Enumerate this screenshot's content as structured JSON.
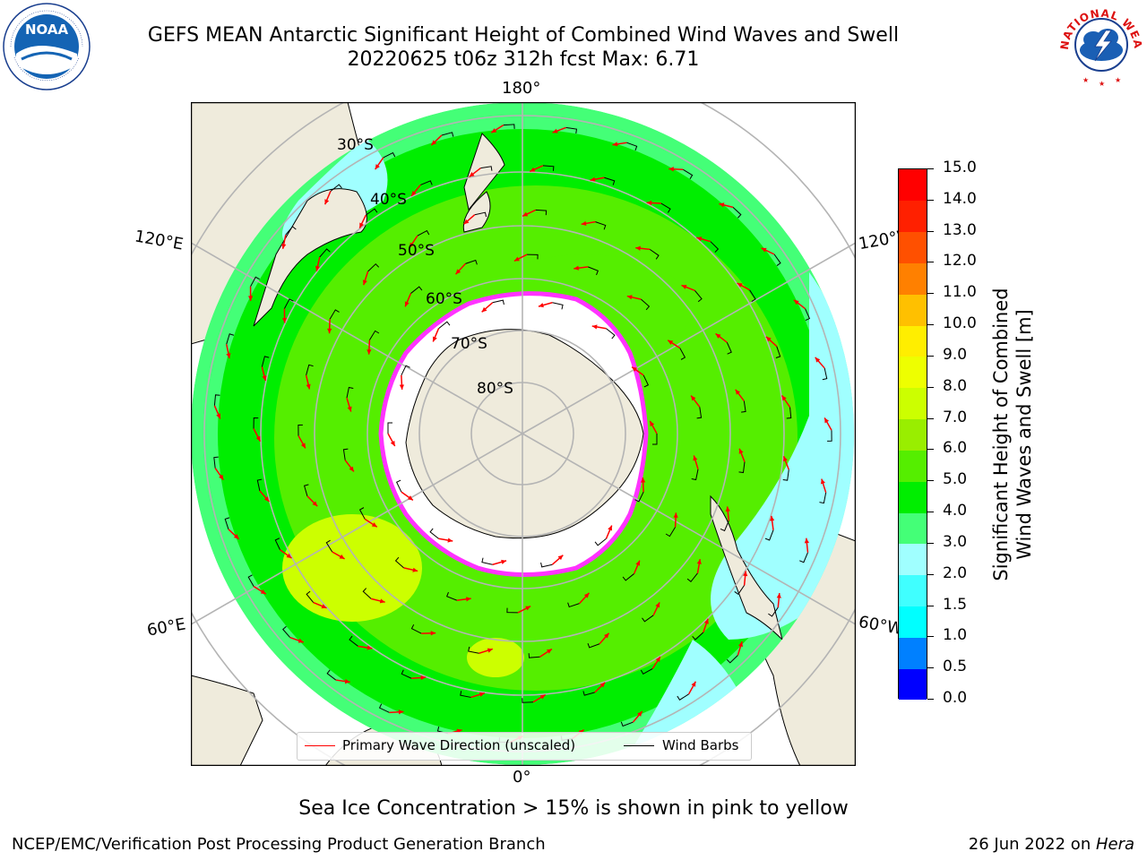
{
  "header": {
    "title_line1": "GEFS MEAN Antarctic Significant Height of Combined Wind Waves and Swell",
    "title_line2": "20220625 t06z 312h fcst   Max: 6.71"
  },
  "logos": {
    "left": {
      "text": "NOAA",
      "ring_text": "NATIONAL OCEANIC AND ATMOSPHERIC ADMINISTRATION · U.S. DEPARTMENT OF COMMERCE"
    },
    "right": {
      "ring_text": "NATIONAL WEATHER SERVICE"
    }
  },
  "map": {
    "longitude_labels": {
      "top": "180°",
      "bottom": "0°",
      "upper_left": "120°E",
      "upper_right": "120°W",
      "lower_left": "60°E",
      "lower_right": "60°W"
    },
    "latitude_labels": [
      "30°S",
      "40°S",
      "50°S",
      "60°S",
      "70°S",
      "80°S"
    ],
    "legend": {
      "wave_direction": "Primary Wave Direction (unscaled)",
      "wind_barbs": "Wind Barbs"
    },
    "colors": {
      "land": "#efebdc",
      "ice": "#ffffff",
      "ice_edge": "#ff33ff",
      "arrow": "#ff0000",
      "barb": "#000000",
      "grid": "#b4b4b4"
    }
  },
  "colorbar": {
    "label_line1": "Significant Height of Combined",
    "label_line2": "Wind Waves and Swell [m]",
    "ticks": [
      "0.0",
      "0.5",
      "1.0",
      "1.5",
      "2.0",
      "3.0",
      "4.0",
      "5.0",
      "6.0",
      "7.0",
      "8.0",
      "9.0",
      "10.0",
      "11.0",
      "12.0",
      "13.0",
      "14.0",
      "15.0"
    ],
    "colors": [
      "#0000ff",
      "#0080ff",
      "#00ffff",
      "#40ffff",
      "#a0ffff",
      "#44ff77",
      "#00ee00",
      "#55ee00",
      "#99ee00",
      "#ccff00",
      "#eeff00",
      "#ffee00",
      "#ffc000",
      "#ff8000",
      "#ff5000",
      "#ff2000",
      "#ff0000"
    ]
  },
  "caption": "Sea Ice Concentration > 15% is shown in pink to yellow",
  "footer": {
    "left": "NCEP/EMC/Verification Post Processing Product Generation Branch",
    "right_prefix": "26 Jun 2022 on ",
    "right_host": "Hera"
  }
}
